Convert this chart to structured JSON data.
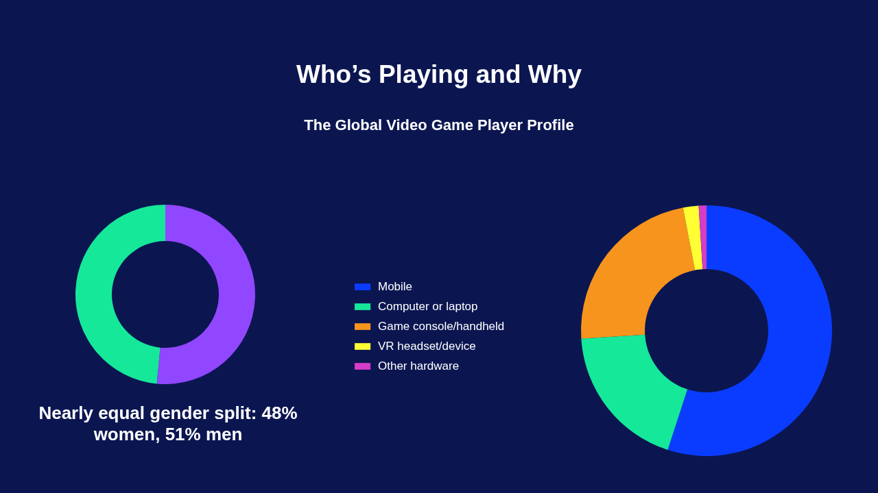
{
  "chart_data": [
    {
      "type": "donut",
      "title": "Who’s Playing and Why",
      "subtitle": "The Global Video Game Player Profile",
      "categories": [
        null,
        null
      ],
      "values": [
        51,
        48
      ],
      "colors": [
        "#9146ff",
        "#16e89a"
      ],
      "annotations": [
        "Nearly equal gender split: 48% women, 51% men"
      ],
      "legend": false
    },
    {
      "type": "donut",
      "categories": [
        "Mobile",
        "Computer or laptop",
        "Game console/handheld",
        "VR headset/device",
        "Other hardware"
      ],
      "values": [
        55,
        19,
        23,
        2,
        1
      ],
      "colors": [
        "#0a3cff",
        "#16e89a",
        "#f7941d",
        "#ffff33",
        "#d63cc8"
      ],
      "legend": "left"
    }
  ]
}
